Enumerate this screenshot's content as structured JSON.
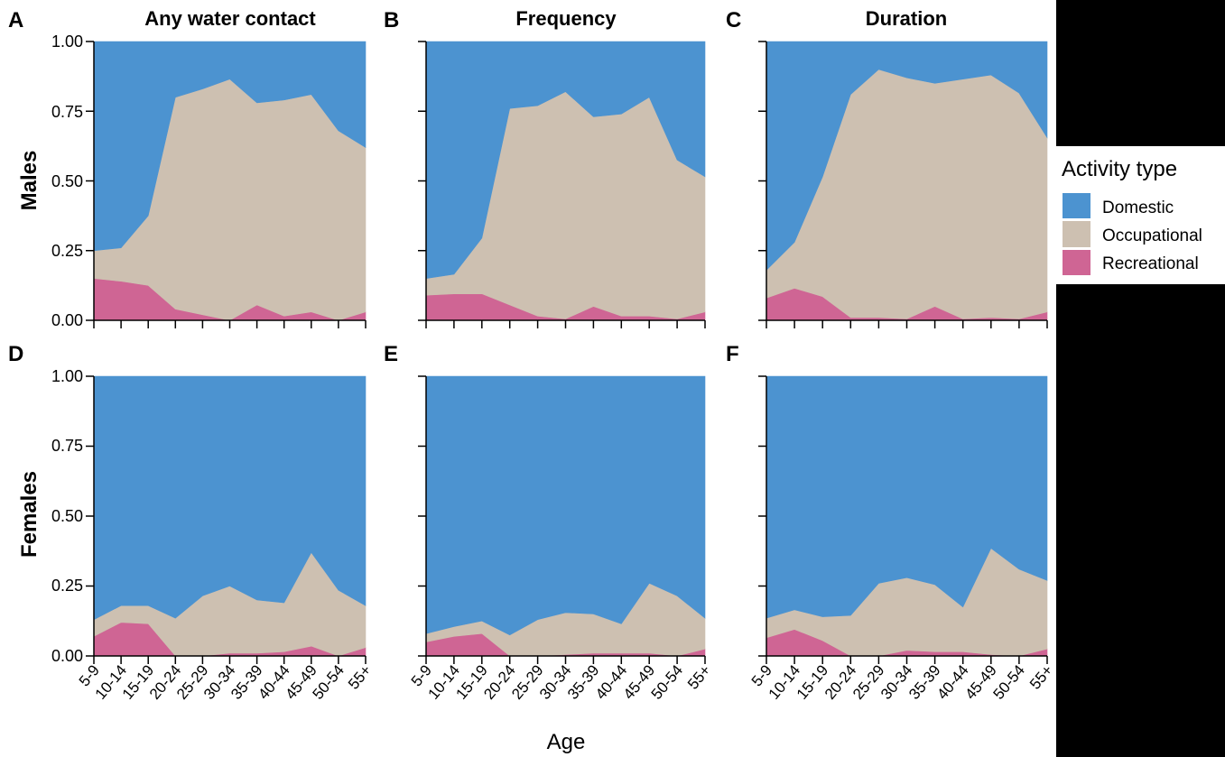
{
  "colors": {
    "Domestic": "#4c93d0",
    "Occupational": "#cdc0b1",
    "Recreational": "#cf6594"
  },
  "labels": {
    "col_titles": [
      "Any water contact",
      "Frequency",
      "Duration"
    ],
    "row_titles": [
      "Males",
      "Females"
    ],
    "panel_letters": [
      "A",
      "B",
      "C",
      "D",
      "E",
      "F"
    ],
    "xlabel": "Age",
    "legend_title": "Activity type",
    "legend_items": [
      "Domestic",
      "Occupational",
      "Recreational"
    ],
    "y_ticks": [
      "0.00",
      "0.25",
      "0.50",
      "0.75",
      "1.00"
    ]
  },
  "chart_data": [
    {
      "type": "area",
      "panel": "A",
      "title": "Any water contact",
      "row": "Males",
      "categories": [
        "5-9",
        "10-14",
        "15-19",
        "20-24",
        "25-29",
        "30-34",
        "35-39",
        "40-44",
        "45-49",
        "50-54",
        "55+"
      ],
      "ylim": [
        0,
        1
      ],
      "stacked": true,
      "series": [
        {
          "name": "Recreational",
          "values": [
            0.15,
            0.14,
            0.125,
            0.04,
            0.02,
            0.0,
            0.055,
            0.015,
            0.03,
            0.0,
            0.03
          ]
        },
        {
          "name": "Occupational",
          "values": [
            0.1,
            0.12,
            0.25,
            0.76,
            0.81,
            0.865,
            0.725,
            0.775,
            0.78,
            0.68,
            0.59
          ]
        },
        {
          "name": "Domestic",
          "values": [
            0.75,
            0.74,
            0.625,
            0.2,
            0.17,
            0.135,
            0.22,
            0.21,
            0.19,
            0.32,
            0.38
          ]
        }
      ]
    },
    {
      "type": "area",
      "panel": "B",
      "title": "Frequency",
      "row": "Males",
      "categories": [
        "5-9",
        "10-14",
        "15-19",
        "20-24",
        "25-29",
        "30-34",
        "35-39",
        "40-44",
        "45-49",
        "50-54",
        "55+"
      ],
      "ylim": [
        0,
        1
      ],
      "stacked": true,
      "series": [
        {
          "name": "Recreational",
          "values": [
            0.09,
            0.095,
            0.095,
            0.055,
            0.015,
            0.005,
            0.05,
            0.015,
            0.015,
            0.005,
            0.03
          ]
        },
        {
          "name": "Occupational",
          "values": [
            0.06,
            0.07,
            0.2,
            0.705,
            0.755,
            0.815,
            0.68,
            0.725,
            0.785,
            0.57,
            0.485
          ]
        },
        {
          "name": "Domestic",
          "values": [
            0.85,
            0.835,
            0.705,
            0.24,
            0.23,
            0.18,
            0.27,
            0.26,
            0.2,
            0.425,
            0.485
          ]
        }
      ]
    },
    {
      "type": "area",
      "panel": "C",
      "title": "Duration",
      "row": "Males",
      "categories": [
        "5-9",
        "10-14",
        "15-19",
        "20-24",
        "25-29",
        "30-34",
        "35-39",
        "40-44",
        "45-49",
        "50-54",
        "55+"
      ],
      "ylim": [
        0,
        1
      ],
      "stacked": true,
      "series": [
        {
          "name": "Recreational",
          "values": [
            0.08,
            0.115,
            0.085,
            0.01,
            0.01,
            0.005,
            0.05,
            0.005,
            0.01,
            0.005,
            0.03
          ]
        },
        {
          "name": "Occupational",
          "values": [
            0.1,
            0.165,
            0.43,
            0.8,
            0.89,
            0.865,
            0.8,
            0.86,
            0.87,
            0.81,
            0.625
          ]
        },
        {
          "name": "Domestic",
          "values": [
            0.82,
            0.72,
            0.485,
            0.19,
            0.1,
            0.13,
            0.15,
            0.135,
            0.12,
            0.185,
            0.345
          ]
        }
      ]
    },
    {
      "type": "area",
      "panel": "D",
      "title": "",
      "row": "Females",
      "categories": [
        "5-9",
        "10-14",
        "15-19",
        "20-24",
        "25-29",
        "30-34",
        "35-39",
        "40-44",
        "45-49",
        "50-54",
        "55+"
      ],
      "ylim": [
        0,
        1
      ],
      "stacked": true,
      "series": [
        {
          "name": "Recreational",
          "values": [
            0.07,
            0.12,
            0.115,
            0.0,
            0.0,
            0.01,
            0.01,
            0.015,
            0.035,
            0.0,
            0.03
          ]
        },
        {
          "name": "Occupational",
          "values": [
            0.06,
            0.06,
            0.065,
            0.135,
            0.215,
            0.24,
            0.19,
            0.175,
            0.335,
            0.235,
            0.15
          ]
        },
        {
          "name": "Domestic",
          "values": [
            0.87,
            0.82,
            0.82,
            0.865,
            0.785,
            0.75,
            0.8,
            0.81,
            0.63,
            0.765,
            0.82
          ]
        }
      ]
    },
    {
      "type": "area",
      "panel": "E",
      "title": "",
      "row": "Females",
      "categories": [
        "5-9",
        "10-14",
        "15-19",
        "20-24",
        "25-29",
        "30-34",
        "35-39",
        "40-44",
        "45-49",
        "50-54",
        "55+"
      ],
      "ylim": [
        0,
        1
      ],
      "stacked": true,
      "series": [
        {
          "name": "Recreational",
          "values": [
            0.05,
            0.07,
            0.08,
            0.0,
            0.0,
            0.005,
            0.01,
            0.01,
            0.01,
            0.0,
            0.025
          ]
        },
        {
          "name": "Occupational",
          "values": [
            0.03,
            0.035,
            0.045,
            0.075,
            0.13,
            0.15,
            0.14,
            0.105,
            0.25,
            0.215,
            0.11
          ]
        },
        {
          "name": "Domestic",
          "values": [
            0.92,
            0.895,
            0.875,
            0.925,
            0.87,
            0.845,
            0.85,
            0.885,
            0.74,
            0.785,
            0.865
          ]
        }
      ]
    },
    {
      "type": "area",
      "panel": "F",
      "title": "",
      "row": "Females",
      "categories": [
        "5-9",
        "10-14",
        "15-19",
        "20-24",
        "25-29",
        "30-34",
        "35-39",
        "40-44",
        "45-49",
        "50-54",
        "55+"
      ],
      "ylim": [
        0,
        1
      ],
      "stacked": true,
      "series": [
        {
          "name": "Recreational",
          "values": [
            0.065,
            0.095,
            0.055,
            0.0,
            0.0,
            0.02,
            0.015,
            0.015,
            0.005,
            0.0,
            0.025
          ]
        },
        {
          "name": "Occupational",
          "values": [
            0.07,
            0.07,
            0.085,
            0.145,
            0.26,
            0.26,
            0.24,
            0.16,
            0.38,
            0.31,
            0.245
          ]
        },
        {
          "name": "Domestic",
          "values": [
            0.865,
            0.835,
            0.86,
            0.855,
            0.74,
            0.72,
            0.745,
            0.825,
            0.615,
            0.69,
            0.73
          ]
        }
      ]
    }
  ]
}
